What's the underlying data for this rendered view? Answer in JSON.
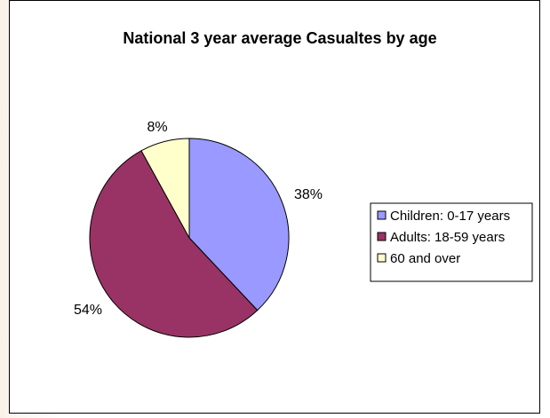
{
  "chart_data": {
    "type": "pie",
    "title": "National 3 year average Casualtes by age",
    "slices": [
      {
        "label": "Children: 0-17 years",
        "value": 38,
        "display": "38%",
        "color": "#9999ff"
      },
      {
        "label": "Adults: 18-59 years",
        "value": 54,
        "display": "54%",
        "color": "#993366"
      },
      {
        "label": "60 and over",
        "value": 8,
        "display": "8%",
        "color": "#ffffcc"
      }
    ],
    "start_angle": "12 o'clock",
    "direction": "clockwise",
    "legend_position": "right",
    "border": true
  }
}
